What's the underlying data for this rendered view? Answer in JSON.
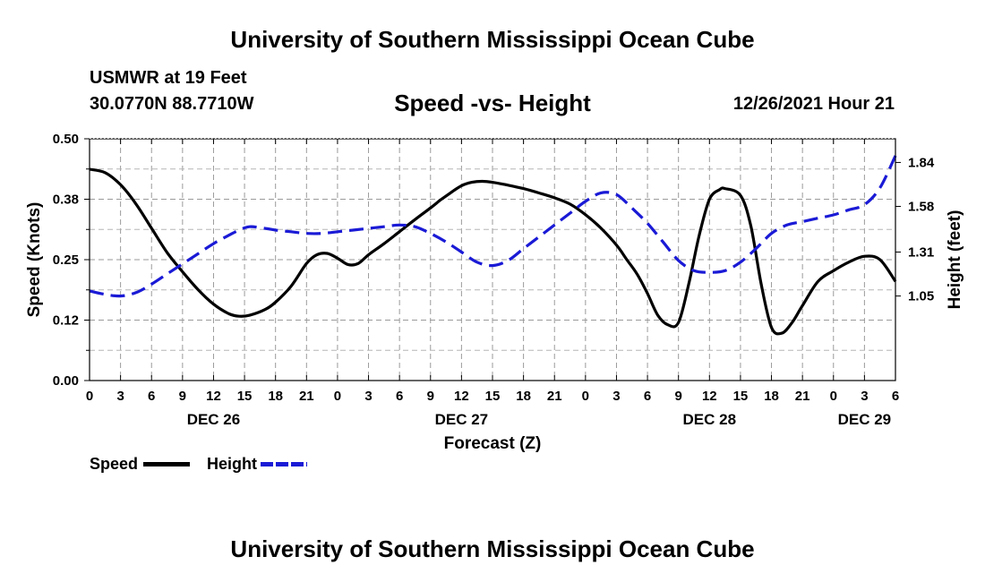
{
  "header": {
    "top_title": "University of Southern Mississippi Ocean Cube",
    "station_name": "USMWR at 19 Feet",
    "station_coords": "30.0770N  88.7710W",
    "subtitle": "Speed -vs- Height",
    "timestamp": "12/26/2021 Hour 21"
  },
  "footer": {
    "bottom_title": "University of Southern Mississippi Ocean Cube"
  },
  "legend": {
    "speed_label": "Speed",
    "height_label": "Height",
    "speed_color": "#000000",
    "height_color": "#1a1ad6"
  },
  "chart_data": {
    "type": "line",
    "title": "Speed -vs- Height",
    "xlabel": "Forecast (Z)",
    "ylabel_left": "Speed (Knots)",
    "ylabel_right": "Height (feet)",
    "x_unit": "hours from DEC 26 00Z",
    "xlim": [
      0,
      78
    ],
    "ylim_left": [
      0,
      0.5
    ],
    "ylim_right": [
      0.55,
      1.98
    ],
    "yticks_left": [
      0.0,
      0.125,
      0.25,
      0.375,
      0.5
    ],
    "ytick_labels_left": [
      "0.00",
      "0.12",
      "0.25",
      "0.38",
      "0.50"
    ],
    "yticks_right": [
      1.05,
      1.31,
      1.58,
      1.84
    ],
    "ytick_labels_right": [
      "1.05",
      "1.31",
      "1.58",
      "1.84"
    ],
    "xticks": [
      0,
      3,
      6,
      9,
      12,
      15,
      18,
      21,
      24,
      27,
      30,
      33,
      36,
      39,
      42,
      45,
      48,
      51,
      54,
      57,
      60,
      63,
      66,
      69,
      72,
      75,
      78
    ],
    "xtick_labels": [
      "0",
      "3",
      "6",
      "9",
      "12",
      "15",
      "18",
      "21",
      "0",
      "3",
      "6",
      "9",
      "12",
      "15",
      "18",
      "21",
      "0",
      "3",
      "6",
      "9",
      "12",
      "15",
      "18",
      "21",
      "0",
      "3",
      "6"
    ],
    "date_labels": [
      {
        "x": 12,
        "label": "DEC 26"
      },
      {
        "x": 36,
        "label": "DEC 27"
      },
      {
        "x": 60,
        "label": "DEC 28"
      },
      {
        "x": 75,
        "label": "DEC 29"
      }
    ],
    "grid": true,
    "series": [
      {
        "name": "Speed",
        "axis": "left",
        "color": "#000000",
        "dash": "solid",
        "x": [
          0,
          1.5,
          3,
          4.5,
          6,
          7.5,
          9,
          10.5,
          12,
          13.5,
          14.5,
          15.5,
          17,
          18,
          19.5,
          21,
          22,
          23,
          24,
          25,
          26,
          27,
          28.5,
          30,
          31.5,
          33,
          34,
          35,
          36,
          37,
          38,
          39,
          40.5,
          42,
          43.5,
          45,
          46.5,
          48,
          49.5,
          51,
          52,
          53,
          54,
          55,
          56,
          57,
          58,
          59,
          60,
          61,
          61.5,
          63,
          64,
          65,
          66,
          67,
          68,
          69,
          70.5,
          72,
          73.5,
          75,
          76.5,
          78
        ],
        "y": [
          0.437,
          0.43,
          0.405,
          0.365,
          0.315,
          0.265,
          0.225,
          0.188,
          0.158,
          0.138,
          0.133,
          0.135,
          0.147,
          0.162,
          0.195,
          0.242,
          0.26,
          0.263,
          0.253,
          0.24,
          0.242,
          0.26,
          0.283,
          0.308,
          0.333,
          0.357,
          0.374,
          0.389,
          0.403,
          0.41,
          0.412,
          0.41,
          0.404,
          0.397,
          0.388,
          0.378,
          0.365,
          0.343,
          0.315,
          0.28,
          0.25,
          0.22,
          0.18,
          0.135,
          0.115,
          0.12,
          0.2,
          0.3,
          0.375,
          0.395,
          0.397,
          0.383,
          0.32,
          0.2,
          0.11,
          0.098,
          0.12,
          0.155,
          0.205,
          0.227,
          0.245,
          0.257,
          0.25,
          0.205
        ]
      },
      {
        "name": "Height",
        "axis": "right",
        "color": "#1a1ad6",
        "dash": "dashed",
        "x": [
          0,
          1.5,
          3,
          4.5,
          6,
          7.5,
          9,
          10.5,
          12,
          13.5,
          14.5,
          15.5,
          17,
          18,
          19.5,
          21,
          22.5,
          24,
          25.5,
          27,
          28.5,
          30,
          31.5,
          33,
          34.5,
          36,
          37.5,
          39,
          40.5,
          42,
          43.5,
          45,
          46.5,
          48,
          49.5,
          51,
          52.5,
          54,
          55.5,
          57,
          58.5,
          60,
          61.5,
          63,
          64.5,
          66,
          67.5,
          69,
          70.5,
          72,
          73.5,
          75,
          76.5,
          78
        ],
        "y": [
          1.08,
          1.06,
          1.05,
          1.07,
          1.12,
          1.18,
          1.24,
          1.3,
          1.36,
          1.41,
          1.44,
          1.46,
          1.45,
          1.44,
          1.43,
          1.42,
          1.42,
          1.43,
          1.44,
          1.45,
          1.46,
          1.47,
          1.46,
          1.42,
          1.37,
          1.31,
          1.25,
          1.23,
          1.26,
          1.33,
          1.4,
          1.47,
          1.54,
          1.61,
          1.66,
          1.65,
          1.57,
          1.48,
          1.37,
          1.26,
          1.2,
          1.19,
          1.2,
          1.25,
          1.33,
          1.42,
          1.47,
          1.49,
          1.51,
          1.53,
          1.56,
          1.59,
          1.69,
          1.88
        ]
      }
    ]
  }
}
